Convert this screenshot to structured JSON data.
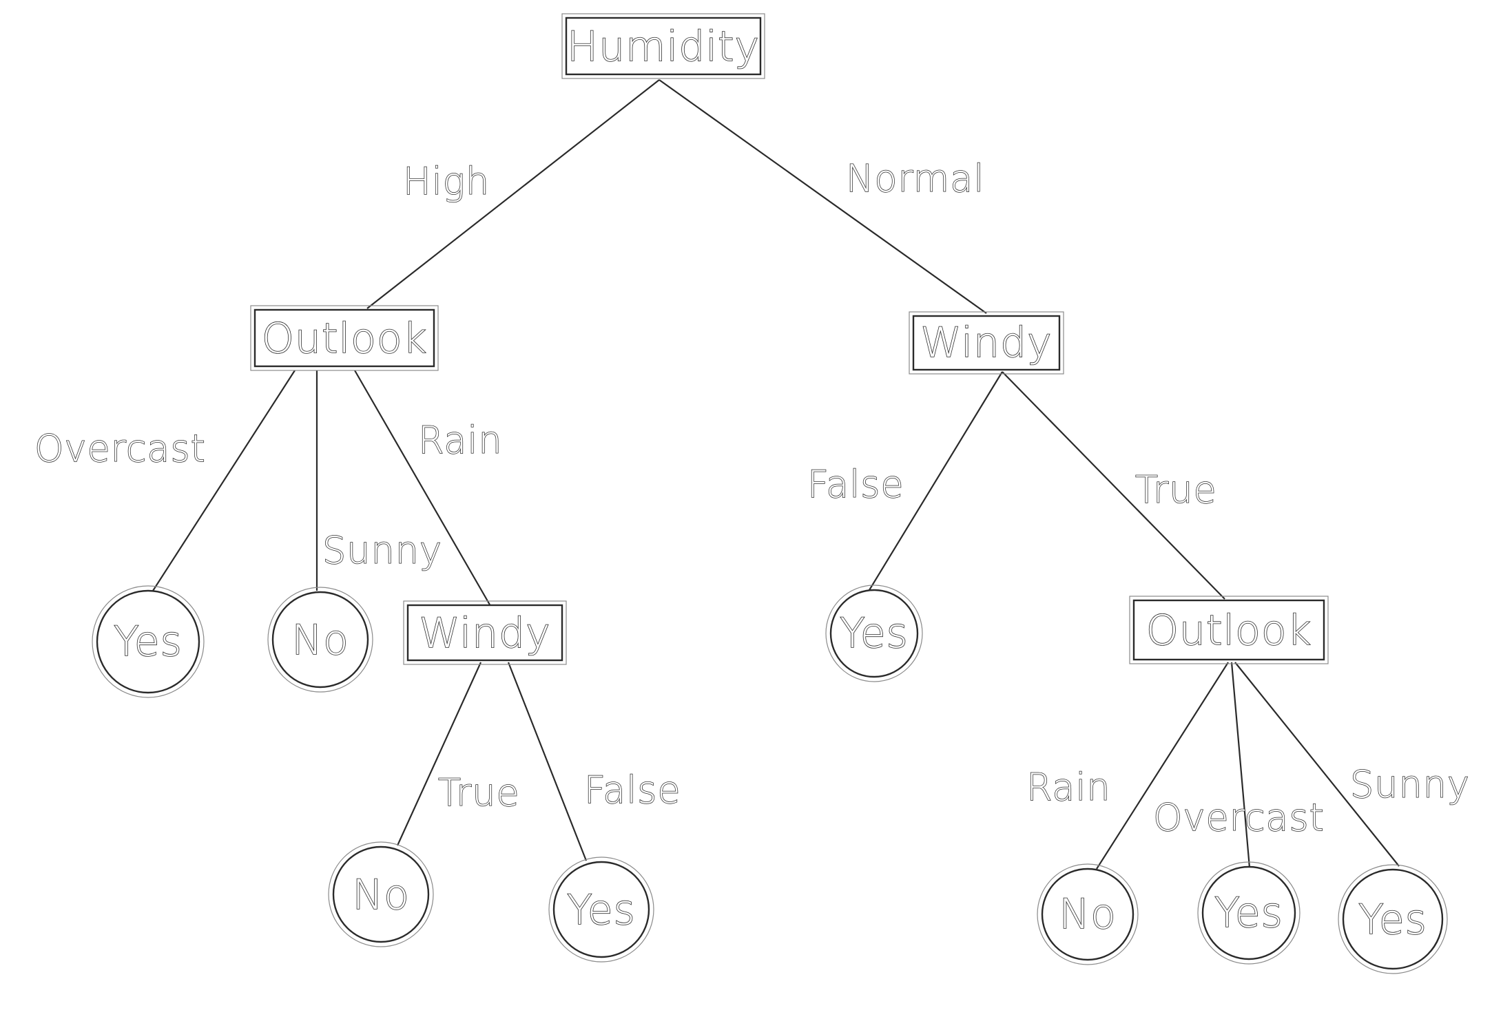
{
  "diagram": {
    "root": {
      "label": "Humidity",
      "branches": [
        {
          "edge": "High",
          "node": {
            "label": "Outlook",
            "branches": [
              {
                "edge": "Overcast",
                "leaf": "Yes"
              },
              {
                "edge": "Sunny",
                "leaf": "No"
              },
              {
                "edge": "Rain",
                "node": {
                  "label": "Windy",
                  "branches": [
                    {
                      "edge": "True",
                      "leaf": "No"
                    },
                    {
                      "edge": "False",
                      "leaf": "Yes"
                    }
                  ]
                }
              }
            ]
          }
        },
        {
          "edge": "Normal",
          "node": {
            "label": "Windy",
            "branches": [
              {
                "edge": "False",
                "leaf": "Yes"
              },
              {
                "edge": "True",
                "node": {
                  "label": "Outlook",
                  "branches": [
                    {
                      "edge": "Rain",
                      "leaf": "No"
                    },
                    {
                      "edge": "Overcast",
                      "leaf": "Yes"
                    },
                    {
                      "edge": "Sunny",
                      "leaf": "Yes"
                    }
                  ]
                }
              }
            ]
          }
        }
      ]
    }
  }
}
